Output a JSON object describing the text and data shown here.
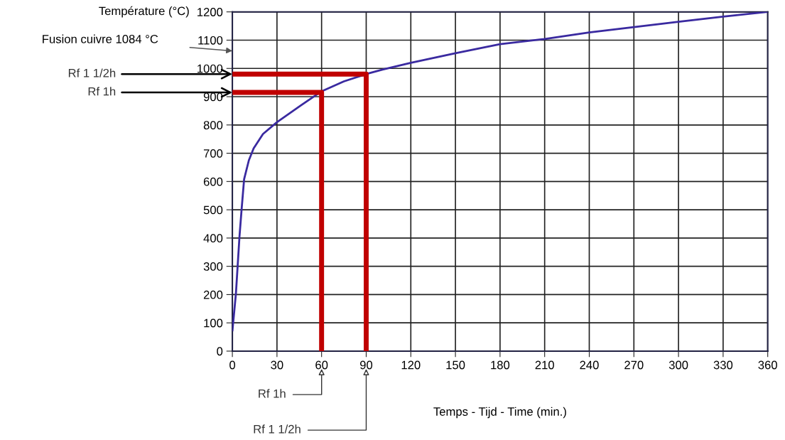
{
  "chart_data": {
    "type": "line",
    "xlabel": "Temps - Tijd - Time (min.)",
    "ylabel": "Température (°C)",
    "xlim": [
      0,
      360
    ],
    "xticks": [
      0,
      30,
      60,
      90,
      120,
      150,
      180,
      210,
      240,
      270,
      300,
      330,
      360
    ],
    "ylim": [
      0,
      1200
    ],
    "yticks": [
      0,
      100,
      200,
      300,
      400,
      500,
      600,
      700,
      800,
      900,
      1000,
      1100,
      1200
    ],
    "grid": true,
    "legend": false,
    "marker": "none",
    "line_style": "solid",
    "series": [
      {
        "color": "#3a2aa0",
        "x": [
          0,
          2.4,
          4.8,
          6.3,
          7.9,
          11.1,
          14.3,
          20.6,
          30,
          46,
          60,
          75,
          90,
          101,
          120,
          150,
          180,
          210,
          240,
          270,
          300,
          330,
          360
        ],
        "values": [
          70,
          204,
          406,
          507,
          608,
          675,
          717,
          768,
          810,
          869,
          919,
          954,
          980,
          996,
          1020,
          1054,
          1086,
          1104,
          1127,
          1146,
          1165,
          1183,
          1200
        ]
      },
      {
        "color": "#c00000",
        "x": [
          0,
          60,
          60
        ],
        "values": [
          915,
          915,
          0
        ]
      },
      {
        "color": "#c00000",
        "x": [
          0,
          90,
          90
        ],
        "values": [
          980,
          980,
          0
        ]
      }
    ],
    "annotations": [
      "Fusion cuivre 1084 °C",
      {
        "text": "Rf 1 1/2h",
        "x": 0,
        "y": 980
      },
      {
        "text": "Rf 1h",
        "x": 0,
        "y": 915
      },
      "Rf 1h",
      "Rf 1 1/2h"
    ]
  }
}
